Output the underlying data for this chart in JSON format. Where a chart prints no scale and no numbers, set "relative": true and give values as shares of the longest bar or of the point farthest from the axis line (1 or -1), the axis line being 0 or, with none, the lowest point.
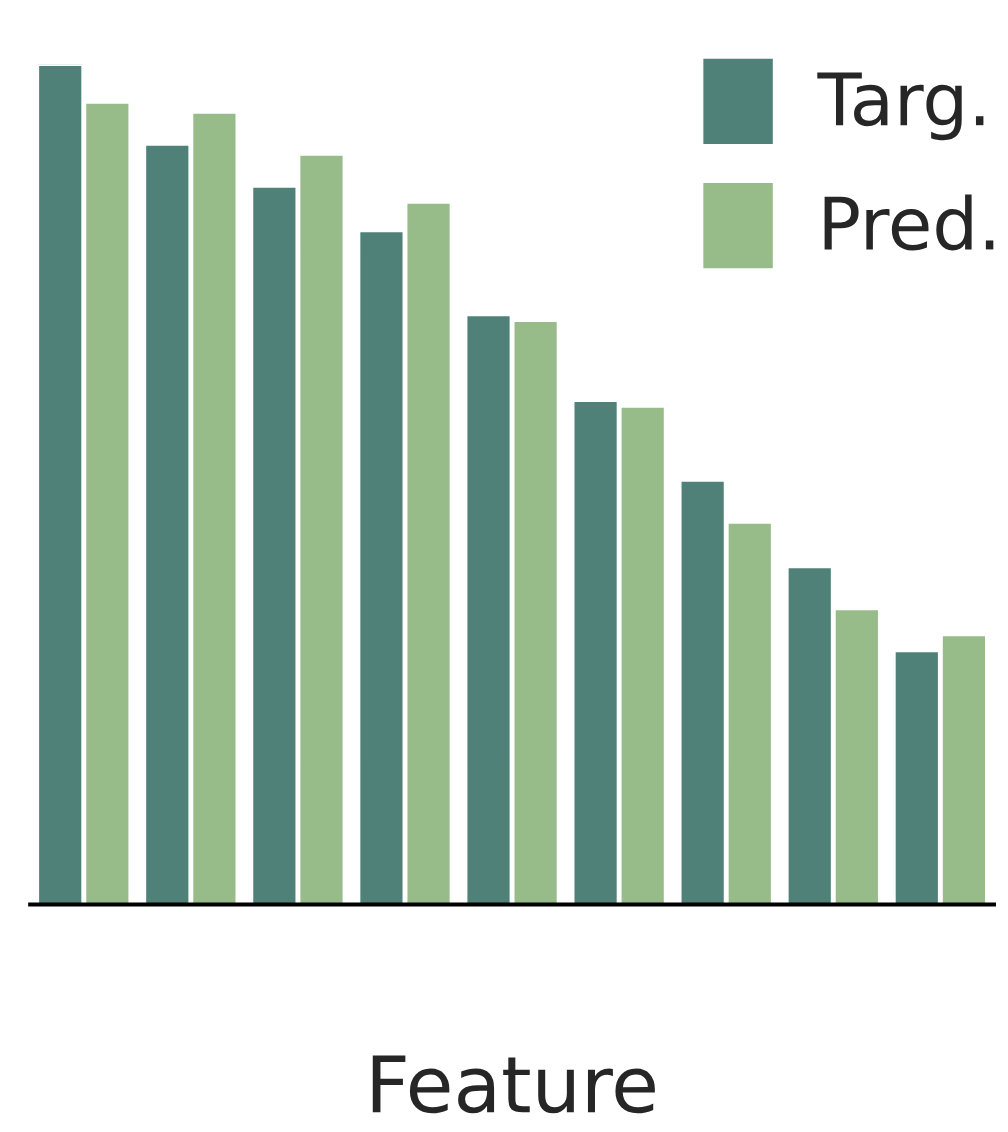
{
  "chart_data": {
    "type": "bar",
    "relative": true,
    "xlabel": "Feature",
    "categories": [
      null,
      null,
      null,
      null,
      null,
      null,
      null,
      null,
      null
    ],
    "series": [
      {
        "name": "Targ.",
        "color": "#4f8178",
        "values": [
          1,
          0.905,
          0.855,
          0.802,
          0.702,
          0.6,
          0.505,
          0.402,
          0.302
        ]
      },
      {
        "name": "Pred.",
        "color": "#97bc89",
        "values": [
          0.955,
          0.943,
          0.893,
          0.836,
          0.695,
          0.593,
          0.455,
          0.352,
          0.321
        ]
      }
    ],
    "legend": "top right",
    "grid": false
  }
}
